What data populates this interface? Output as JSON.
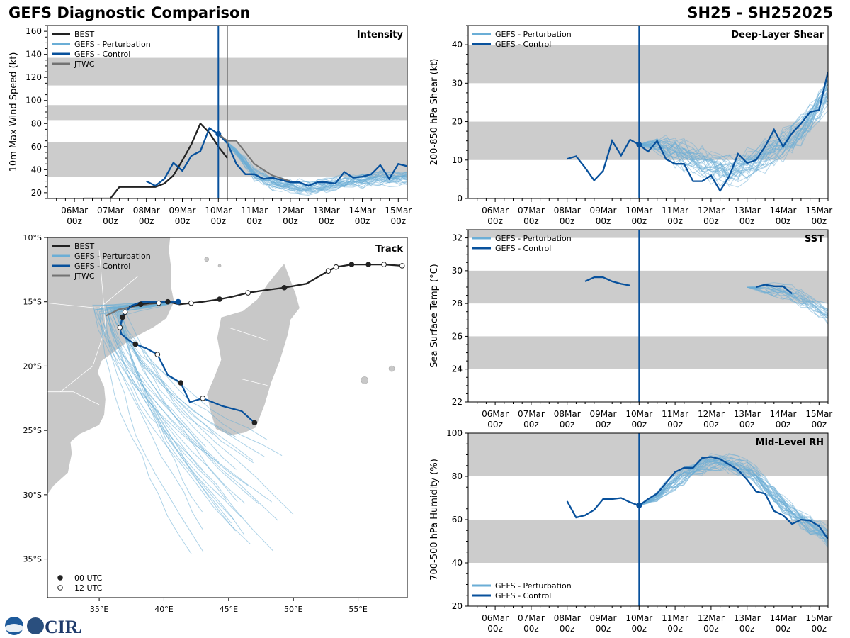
{
  "header": {
    "left_title": "GEFS Diagnostic Comparison",
    "right_title": "SH25 - SH252025"
  },
  "logo": {
    "text": "CIRA"
  },
  "colors": {
    "best": "#222222",
    "perturbation": "#6baed6",
    "control": "#08519c",
    "jtwc": "#737373",
    "band": "#cccccc",
    "vline": "#08519c",
    "vline2": "#737373",
    "land": "#c8c8c8"
  },
  "time_axis": {
    "start": "06Mar 00z",
    "ticks": [
      {
        "top": "06Mar",
        "bottom": "00z"
      },
      {
        "top": "07Mar",
        "bottom": "00z"
      },
      {
        "top": "08Mar",
        "bottom": "00z"
      },
      {
        "top": "09Mar",
        "bottom": "00z"
      },
      {
        "top": "10Mar",
        "bottom": "00z"
      },
      {
        "top": "11Mar",
        "bottom": "00z"
      },
      {
        "top": "12Mar",
        "bottom": "00z"
      },
      {
        "top": "13Mar",
        "bottom": "00z"
      },
      {
        "top": "14Mar",
        "bottom": "00z"
      },
      {
        "top": "15Mar",
        "bottom": "00z"
      }
    ]
  },
  "chart_data": [
    {
      "id": "intensity",
      "type": "line",
      "title": "Intensity",
      "ylabel": "10m Max Wind Speed (kt)",
      "xlim_days": [
        -0.75,
        9.25
      ],
      "ylim": [
        15,
        165
      ],
      "yticks": [
        20,
        40,
        60,
        80,
        100,
        120,
        140,
        160
      ],
      "bands": [
        [
          34,
          64
        ],
        [
          83,
          96
        ],
        [
          113,
          137
        ]
      ],
      "init_day": 4.0,
      "jtwc_line_day": 4.25,
      "legend": [
        "BEST",
        "GEFS - Perturbation",
        "GEFS - Control",
        "JTWC"
      ],
      "series": [
        {
          "name": "BEST",
          "x": [
            0.25,
            0.5,
            0.75,
            1.0,
            1.25,
            1.5,
            1.75,
            2.0,
            2.25,
            2.5,
            2.75,
            3.0,
            3.25,
            3.5,
            3.75,
            4.0,
            4.25
          ],
          "values": [
            15,
            15,
            15,
            15,
            25,
            25,
            25,
            25,
            25,
            28,
            35,
            48,
            62,
            80,
            72,
            60,
            50
          ]
        },
        {
          "name": "GEFS - Control",
          "x": [
            2.0,
            2.25,
            2.5,
            2.75,
            3.0,
            3.25,
            3.5,
            3.75,
            4.0,
            4.25,
            4.5,
            4.75,
            5.0,
            5.25,
            5.5,
            5.75,
            6.0,
            6.25,
            6.5,
            6.75,
            7.0,
            7.25,
            7.5,
            7.75,
            8.0,
            8.25,
            8.5,
            8.75,
            9.0,
            9.25
          ],
          "values": [
            30,
            26,
            32,
            46,
            39,
            52,
            56,
            76,
            71,
            63,
            45,
            36,
            36,
            32,
            33,
            31,
            29,
            29,
            26,
            29,
            29,
            28,
            38,
            33,
            34,
            36,
            44,
            32,
            45,
            43
          ]
        },
        {
          "name": "JTWC",
          "x": [
            4.0,
            4.25,
            4.5,
            4.75,
            5.0,
            5.5,
            6.0
          ],
          "values": [
            71,
            65,
            65,
            55,
            45,
            35,
            30
          ]
        }
      ],
      "perturbation": {
        "count": 30,
        "start_day": 4.0,
        "end_day": 9.25,
        "start_value": 71,
        "mean_values": [
          71,
          55,
          35,
          28,
          25,
          25,
          27,
          30,
          32,
          33,
          34
        ],
        "spread": 8
      }
    },
    {
      "id": "shear",
      "type": "line",
      "title": "Deep-Layer Shear",
      "ylabel": "200-850 hPa Shear (kt)",
      "xlim_days": [
        -0.75,
        9.25
      ],
      "ylim": [
        0,
        45
      ],
      "yticks": [
        0,
        10,
        20,
        30,
        40
      ],
      "bands": [
        [
          10,
          20
        ],
        [
          30,
          40
        ]
      ],
      "init_day": 4.0,
      "legend": [
        "GEFS - Perturbation",
        "GEFS - Control"
      ],
      "series": [
        {
          "name": "GEFS - Control",
          "x": [
            2.0,
            2.25,
            2.5,
            2.75,
            3.0,
            3.25,
            3.5,
            3.75,
            4.0,
            4.25,
            4.5,
            4.75,
            5.0,
            5.25,
            5.5,
            5.75,
            6.0,
            6.25,
            6.5,
            6.75,
            7.0,
            7.25,
            7.5,
            7.75,
            8.0,
            8.25,
            8.5,
            8.75,
            9.0,
            9.25
          ],
          "values": [
            10.3,
            11,
            8,
            4.7,
            7.2,
            15,
            11.2,
            15.3,
            14,
            12.2,
            15,
            10.2,
            9,
            9,
            4.5,
            4.5,
            6,
            2,
            5.7,
            11.6,
            9.2,
            10,
            13.5,
            17.9,
            13.5,
            17,
            19.5,
            22.5,
            23,
            33
          ]
        }
      ],
      "perturbation": {
        "count": 30,
        "start_day": 4.0,
        "end_day": 9.25,
        "start_value": 14,
        "mean_values": [
          14,
          14,
          12,
          10,
          8,
          7,
          9,
          12,
          15,
          20,
          27
        ],
        "spread": 5
      }
    },
    {
      "id": "sst",
      "type": "line",
      "title": "SST",
      "ylabel": "Sea Surface Temp (°C)",
      "xlim_days": [
        -0.75,
        9.25
      ],
      "ylim": [
        22,
        32.5
      ],
      "yticks": [
        22,
        24,
        26,
        28,
        30,
        32
      ],
      "bands": [
        [
          24,
          26
        ],
        [
          28,
          30
        ],
        [
          32,
          34
        ]
      ],
      "init_day": 4.0,
      "legend": [
        "GEFS - Perturbation",
        "GEFS - Control"
      ],
      "series": [
        {
          "name": "GEFS - Control",
          "x": [
            2.5,
            2.75,
            3.0,
            3.25,
            3.5,
            3.75
          ],
          "values": [
            29.35,
            29.6,
            29.6,
            29.35,
            29.2,
            29.1
          ]
        },
        {
          "name": "GEFS - Control",
          "x": [
            7.25,
            7.5,
            7.75,
            8.0,
            8.25
          ],
          "values": [
            29.0,
            29.15,
            29.05,
            29.05,
            28.6
          ]
        }
      ],
      "perturbation": {
        "count": 20,
        "start_day": 7.0,
        "end_day": 9.25,
        "start_value": 29,
        "mean_values": [
          29,
          28.9,
          28.7,
          28.1,
          27.3
        ],
        "spread": 0.7
      }
    },
    {
      "id": "rh",
      "type": "line",
      "title": "Mid-Level RH",
      "ylabel": "700-500 hPa Humidity (%)",
      "xlim_days": [
        -0.75,
        9.25
      ],
      "ylim": [
        20,
        100
      ],
      "yticks": [
        20,
        40,
        60,
        80,
        100
      ],
      "bands": [
        [
          40,
          60
        ],
        [
          80,
          100
        ]
      ],
      "init_day": 4.0,
      "legend": [
        "GEFS - Perturbation",
        "GEFS - Control"
      ],
      "series": [
        {
          "name": "GEFS - Control",
          "x": [
            2.0,
            2.25,
            2.5,
            2.75,
            3.0,
            3.25,
            3.5,
            3.75,
            4.0,
            4.25,
            4.5,
            4.75,
            5.0,
            5.25,
            5.5,
            5.75,
            6.0,
            6.25,
            6.5,
            6.75,
            7.0,
            7.25,
            7.5,
            7.75,
            8.0,
            8.25,
            8.5,
            8.75,
            9.0,
            9.25
          ],
          "values": [
            68.5,
            61,
            62,
            64.5,
            69.5,
            69.5,
            70,
            68,
            66.5,
            69.5,
            72,
            77,
            82,
            84,
            84,
            88.5,
            89,
            88,
            85.5,
            83,
            78.5,
            73,
            72,
            64,
            62,
            58,
            60,
            59.5,
            57,
            51
          ]
        }
      ],
      "perturbation": {
        "count": 30,
        "start_day": 4.0,
        "end_day": 9.25,
        "start_value": 66.5,
        "mean_values": [
          66.5,
          71,
          79,
          84,
          87,
          86,
          82,
          73,
          64,
          58,
          52
        ],
        "spread": 5
      }
    },
    {
      "id": "track",
      "type": "line",
      "title": "Track",
      "xlim_lon": [
        31,
        58.8
      ],
      "ylim_lat": [
        -38,
        -10
      ],
      "xticks": [
        {
          "value": 35,
          "label": "35°E"
        },
        {
          "value": 40,
          "label": "40°E"
        },
        {
          "value": 45,
          "label": "45°E"
        },
        {
          "value": 50,
          "label": "50°E"
        },
        {
          "value": 55,
          "label": "55°E"
        }
      ],
      "yticks": [
        {
          "value": -10,
          "label": "10°S"
        },
        {
          "value": -15,
          "label": "15°S"
        },
        {
          "value": -20,
          "label": "20°S"
        },
        {
          "value": -25,
          "label": "25°S"
        },
        {
          "value": -30,
          "label": "30°S"
        },
        {
          "value": -35,
          "label": "35°S"
        }
      ],
      "legend": [
        "BEST",
        "GEFS - Perturbation",
        "GEFS - Control",
        "JTWC"
      ],
      "marker_legend": [
        "00 UTC",
        "12 UTC"
      ],
      "best_track": {
        "lon": [
          58.4,
          57.0,
          55.8,
          54.5,
          53.3,
          52.7,
          51.0,
          49.3,
          47.8,
          46.5,
          45.3,
          44.3,
          43.0,
          42.1,
          41.2,
          40.3,
          39.6,
          38.9,
          38.2,
          37.3
        ],
        "lat": [
          -12.2,
          -12.1,
          -12.1,
          -12.1,
          -12.3,
          -12.6,
          -13.6,
          -13.9,
          -14.1,
          -14.3,
          -14.6,
          -14.8,
          -15.0,
          -15.1,
          -15.2,
          -15.0,
          -15.1,
          -15.1,
          -15.2,
          -15.4
        ],
        "day_marker": [
          "open",
          "open",
          "closed",
          "closed",
          "open",
          "open",
          "none",
          "closed",
          "none",
          "open",
          "none",
          "closed",
          "none",
          "open",
          "none",
          "closed",
          "open",
          "none",
          "closed",
          "none"
        ]
      },
      "control_track": {
        "lon": [
          41.1,
          40.4,
          39.6,
          38.8,
          38.3,
          37.5,
          37.0,
          36.8,
          36.6,
          36.7,
          37.3,
          37.8,
          38.6,
          39.5,
          40.3,
          41.3,
          42.0,
          43.0,
          44.5,
          46.0,
          47.0
        ],
        "lat": [
          -15.0,
          -15.0,
          -15.0,
          -15.0,
          -15.0,
          -15.3,
          -15.8,
          -16.2,
          -17.0,
          -17.5,
          -18.0,
          -18.3,
          -18.6,
          -19.1,
          -20.7,
          -21.3,
          -22.8,
          -22.5,
          -23.1,
          -23.5,
          -24.4
        ],
        "day_marker": [
          "closed",
          "none",
          "none",
          "none",
          "none",
          "none",
          "open",
          "closed",
          "open",
          "none",
          "none",
          "closed",
          "none",
          "open",
          "none",
          "closed",
          "none",
          "open",
          "none",
          "none",
          "closed"
        ]
      },
      "jtwc_track": {
        "lon": [
          41.0,
          39.5,
          38.0,
          36.5,
          35.5
        ],
        "lat": [
          -15.0,
          -15.1,
          -15.3,
          -15.6,
          -16.1
        ]
      },
      "perturbation": {
        "count": 30,
        "start_lon": 41.0,
        "start_lat": -15.0
      }
    }
  ]
}
